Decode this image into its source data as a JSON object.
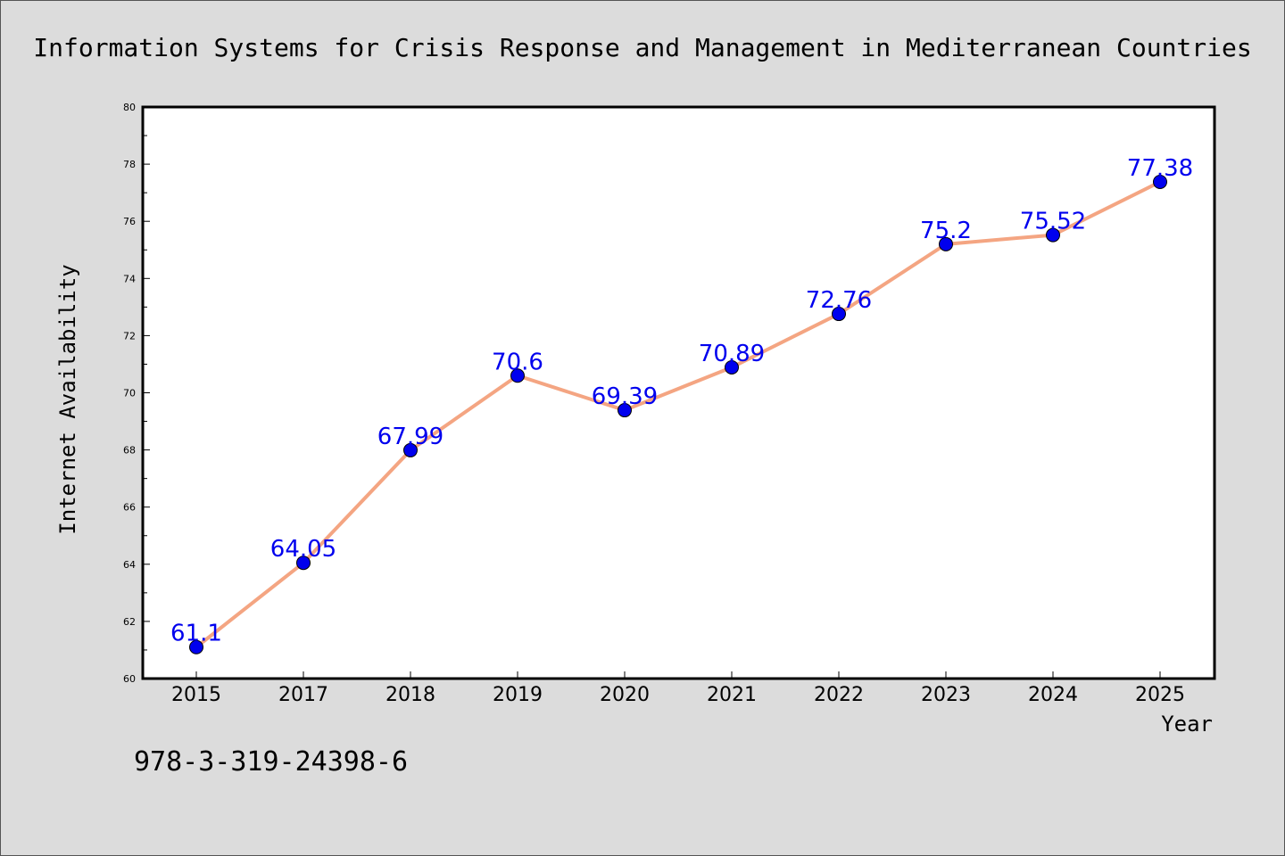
{
  "chart_data": {
    "type": "line",
    "title": "Information Systems for Crisis Response and Management in Mediterranean Countries",
    "xlabel": "Year",
    "ylabel": "Internet Availability",
    "categories": [
      "2015",
      "2017",
      "2018",
      "2019",
      "2020",
      "2021",
      "2022",
      "2023",
      "2024",
      "2025"
    ],
    "series": [
      {
        "values": [
          61.1,
          64.05,
          67.99,
          70.6,
          69.39,
          70.89,
          72.76,
          75.2,
          75.52,
          77.38
        ]
      }
    ],
    "data_labels": [
      "61.1",
      "64.05",
      "67.99",
      "70.6",
      "69.39",
      "70.89",
      "72.76",
      "75.2",
      "75.52",
      "77.38"
    ],
    "ylim": [
      60,
      80
    ],
    "yticks": [
      "60",
      "62",
      "64",
      "66",
      "68",
      "70",
      "72",
      "74",
      "76",
      "78",
      "80"
    ],
    "grid": false,
    "legend": "none",
    "colors": {
      "line": "#f4a582",
      "marker": "#0000ee",
      "label": "#0000ee",
      "plot_bg": "#ffffff",
      "page_bg": "#dcdcdc"
    }
  },
  "footer": {
    "isbn": "978-3-319-24398-6"
  }
}
